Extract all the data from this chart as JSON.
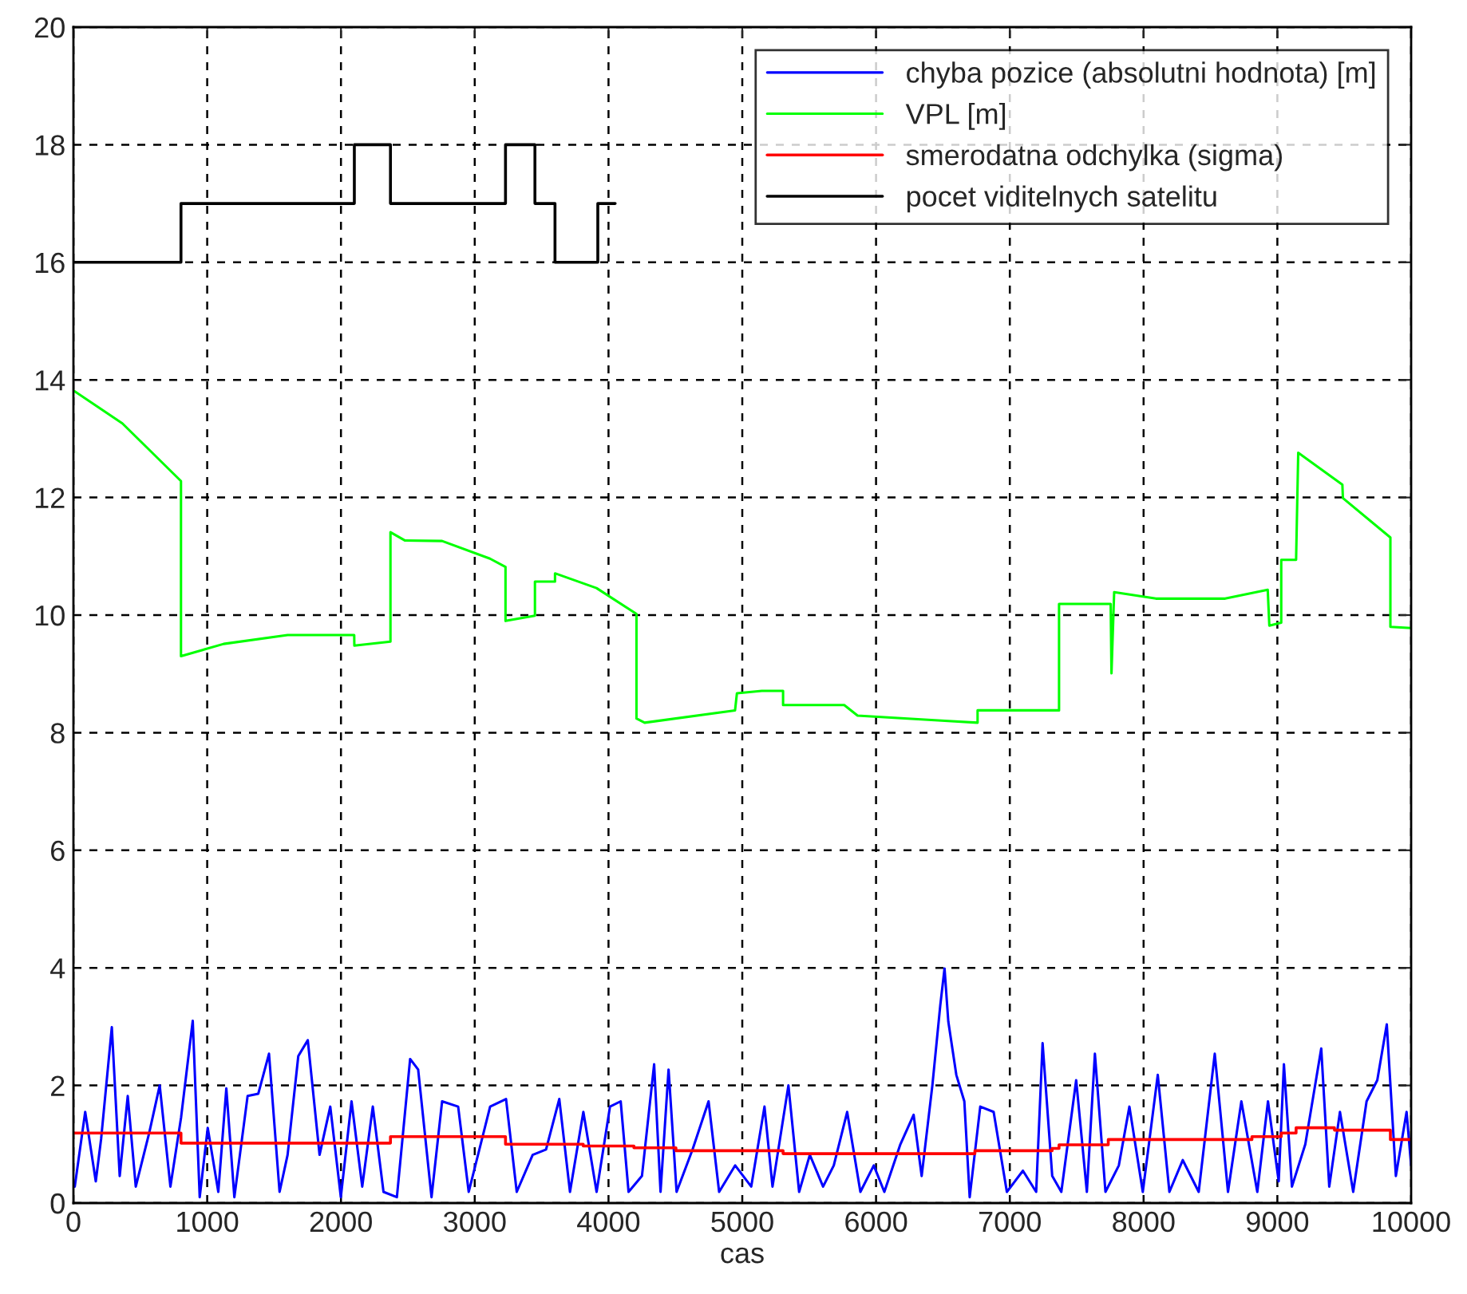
{
  "chart_data": {
    "type": "line",
    "xlabel": "cas",
    "xlim": [
      0,
      10000
    ],
    "xticks": [
      0,
      1000,
      2000,
      3000,
      4000,
      5000,
      6000,
      7000,
      8000,
      9000,
      10000
    ],
    "ylim": [
      0,
      20
    ],
    "yticks": [
      0,
      2,
      4,
      6,
      8,
      10,
      12,
      14,
      16,
      18,
      20
    ],
    "grid": true,
    "legend": "top right",
    "line_style": "solid",
    "marker": "none",
    "series": [
      {
        "name": "chyba pozice (absolutni hodnota) [m]",
        "color": "#0000ff",
        "x": [
          10,
          88,
          167,
          207,
          287,
          346,
          406,
          466,
          566,
          645,
          725,
          805,
          892,
          944,
          1004,
          1083,
          1143,
          1203,
          1302,
          1382,
          1462,
          1541,
          1601,
          1681,
          1752,
          1840,
          1920,
          1999,
          2079,
          2159,
          2238,
          2318,
          2418,
          2517,
          2577,
          2677,
          2756,
          2876,
          2955,
          3115,
          3234,
          3314,
          3433,
          3533,
          3632,
          3712,
          3812,
          3911,
          4011,
          4091,
          4150,
          4250,
          4341,
          4389,
          4449,
          4509,
          4628,
          4748,
          4827,
          4947,
          5067,
          5166,
          5226,
          5345,
          5425,
          5505,
          5604,
          5684,
          5784,
          5883,
          5983,
          6062,
          6182,
          6281,
          6341,
          6421,
          6480,
          6512,
          6540,
          6600,
          6660,
          6700,
          6779,
          6879,
          6919,
          6978,
          7098,
          7197,
          7245,
          7317,
          7385,
          7496,
          7576,
          7636,
          7715,
          7815,
          7894,
          7994,
          8106,
          8193,
          8293,
          8412,
          8532,
          8631,
          8731,
          8850,
          8930,
          9010,
          9049,
          9109,
          9209,
          9328,
          9388,
          9468,
          9567,
          9667,
          9747,
          9818,
          9886,
          9966,
          10000
        ],
        "values": [
          0.28,
          1.55,
          0.37,
          1.09,
          2.99,
          0.46,
          1.82,
          0.28,
          1.19,
          2.0,
          0.28,
          1.46,
          3.1,
          0.1,
          1.28,
          0.19,
          1.95,
          0.1,
          1.82,
          1.86,
          2.54,
          0.19,
          0.82,
          2.5,
          2.77,
          0.82,
          1.64,
          0.1,
          1.73,
          0.28,
          1.64,
          0.19,
          0.1,
          2.45,
          2.27,
          0.1,
          1.73,
          1.64,
          0.19,
          1.64,
          1.77,
          0.19,
          0.82,
          0.91,
          1.77,
          0.19,
          1.55,
          0.19,
          1.64,
          1.73,
          0.19,
          0.46,
          2.36,
          0.19,
          2.27,
          0.19,
          0.91,
          1.73,
          0.19,
          0.64,
          0.28,
          1.64,
          0.28,
          2.0,
          0.19,
          0.82,
          0.28,
          0.64,
          1.55,
          0.19,
          0.64,
          0.19,
          1.0,
          1.5,
          0.46,
          2.0,
          3.36,
          3.99,
          3.09,
          2.18,
          1.73,
          0.1,
          1.64,
          1.55,
          1.0,
          0.19,
          0.55,
          0.19,
          2.72,
          0.46,
          0.19,
          2.09,
          0.19,
          2.54,
          0.19,
          0.64,
          1.64,
          0.19,
          2.18,
          0.19,
          0.73,
          0.19,
          2.54,
          0.19,
          1.73,
          0.19,
          1.73,
          0.37,
          2.36,
          0.28,
          1.0,
          2.63,
          0.28,
          1.55,
          0.19,
          1.73,
          2.09,
          3.04,
          0.46,
          1.55,
          0.64
        ]
      },
      {
        "name": "VPL [m]",
        "color": "#00ff00",
        "x": [
          0,
          366,
          804,
          804,
          1123,
          1601,
          2099,
          2100,
          2370,
          2370,
          2477,
          2756,
          3114,
          3230,
          3230,
          3450,
          3450,
          3600,
          3600,
          3910,
          4209,
          4209,
          4270,
          4946,
          4960,
          5146,
          5305,
          5305,
          5762,
          5862,
          6539,
          6759,
          6759,
          7368,
          7368,
          7754,
          7760,
          7780,
          8092,
          8610,
          8928,
          8940,
          9029,
          9029,
          9140,
          9156,
          9486,
          9490,
          9845,
          9845,
          10000
        ],
        "values": [
          13.82,
          13.26,
          12.28,
          9.3,
          9.51,
          9.66,
          9.66,
          9.48,
          9.55,
          11.41,
          11.27,
          11.26,
          10.96,
          10.82,
          9.9,
          9.99,
          10.57,
          10.57,
          10.71,
          10.46,
          10.02,
          8.24,
          8.17,
          8.38,
          8.67,
          8.71,
          8.71,
          8.47,
          8.47,
          8.29,
          8.2,
          8.17,
          8.38,
          8.38,
          10.19,
          10.19,
          9.01,
          10.39,
          10.28,
          10.28,
          10.43,
          9.82,
          9.87,
          10.94,
          10.94,
          12.76,
          12.22,
          11.99,
          11.32,
          9.8,
          9.78
        ]
      },
      {
        "name": "smerodatna odchylka (sigma)",
        "color": "#ff0000",
        "type": "step",
        "x": [
          0,
          804,
          2370,
          3230,
          3811,
          4190,
          4504,
          5305,
          6739,
          7316,
          7368,
          7736,
          8810,
          9029,
          9140,
          9427,
          9845,
          10000
        ],
        "values": [
          1.19,
          1.02,
          1.13,
          1.0,
          0.97,
          0.94,
          0.89,
          0.84,
          0.89,
          0.93,
          0.99,
          1.08,
          1.13,
          1.19,
          1.28,
          1.24,
          1.08,
          1.08
        ]
      },
      {
        "name": "pocet viditelnych satelitu",
        "color": "#000000",
        "type": "step",
        "x": [
          0,
          804,
          2100,
          2370,
          3230,
          3450,
          3600,
          3920,
          4050
        ],
        "values": [
          16,
          17,
          18,
          17,
          18,
          17,
          16,
          17,
          17
        ]
      }
    ]
  }
}
